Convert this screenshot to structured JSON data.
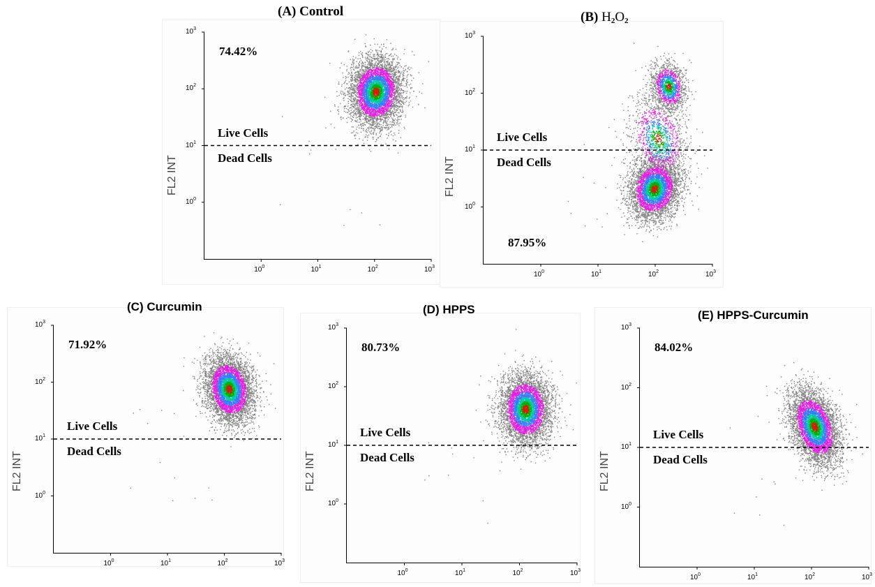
{
  "figure": {
    "panels": [
      {
        "id": "A",
        "title_prefix": "(A)",
        "title_text": "Control",
        "title_font": "serif",
        "y_label": "FL2 INT",
        "percent": "74.42%",
        "percent_pos": "top",
        "live_label": "Live Cells",
        "dead_label": "Dead Cells"
      },
      {
        "id": "B",
        "title_prefix": "(B)",
        "title_text": "H",
        "title_sub1": "2",
        "title_mid": "O",
        "title_sub2": "2",
        "title_font": "serif",
        "y_label": "FL2 INT",
        "percent": "87.95%",
        "percent_pos": "bottom",
        "live_label": "Live Cells",
        "dead_label": "Dead Cells"
      },
      {
        "id": "C",
        "title_prefix": "(C)",
        "title_text": "Curcumin",
        "title_font": "sans",
        "y_label": "FL2 INT",
        "percent": "71.92%",
        "percent_pos": "top",
        "live_label": "Live Cells",
        "dead_label": "Dead Cells"
      },
      {
        "id": "D",
        "title_prefix": "(D)",
        "title_text": "HPPS",
        "title_font": "sans",
        "y_label": "FL2 INT",
        "percent": "80.73%",
        "percent_pos": "top",
        "live_label": "Live Cells",
        "dead_label": "Dead Cells"
      },
      {
        "id": "E",
        "title_prefix": "(E)",
        "title_text": "HPPS-Curcumin",
        "title_font": "sans",
        "y_label": "FL2 INT",
        "percent": "84.02%",
        "percent_pos": "top",
        "live_label": "Live Cells",
        "dead_label": "Dead Cells"
      }
    ],
    "tick_base": "10",
    "y_tick_exponents": [
      "3",
      "2",
      "1",
      "0"
    ],
    "x_tick_exponents": [
      "0",
      "1",
      "2",
      "3"
    ]
  },
  "chart_data": [
    {
      "type": "scatter",
      "panel": "A",
      "title": "(A) Control",
      "ylabel": "FL2 INT",
      "xlabel": "",
      "xscale": "log",
      "yscale": "log",
      "xlim": [
        0.1,
        1000
      ],
      "ylim": [
        0.1,
        1000
      ],
      "gate_y": 10,
      "gate_labels": [
        "Live Cells",
        "Dead Cells"
      ],
      "annotation": "74.42%",
      "clusters": [
        {
          "center_x": 110,
          "center_y": 80,
          "description": "main population above gate"
        }
      ],
      "density_colors": [
        "#808080",
        "#e020e0",
        "#3a7bff",
        "#00c8a0",
        "#00b000",
        "#d02000"
      ]
    },
    {
      "type": "scatter",
      "panel": "B",
      "title": "(B) H2O2",
      "ylabel": "FL2 INT",
      "xlabel": "",
      "xscale": "log",
      "yscale": "log",
      "xlim": [
        0.1,
        1000
      ],
      "ylim": [
        0.1,
        1000
      ],
      "gate_y": 10,
      "gate_labels": [
        "Live Cells",
        "Dead Cells"
      ],
      "annotation": "87.95%",
      "clusters": [
        {
          "center_x": 95,
          "center_y": 2,
          "description": "main population below gate"
        },
        {
          "center_x": 180,
          "center_y": 150,
          "description": "secondary population above gate"
        }
      ],
      "density_colors": [
        "#808080",
        "#e020e0",
        "#3a7bff",
        "#00c8a0",
        "#00b000",
        "#d02000"
      ]
    },
    {
      "type": "scatter",
      "panel": "C",
      "title": "(C) Curcumin",
      "ylabel": "FL2 INT",
      "xlabel": "",
      "xscale": "log",
      "yscale": "log",
      "xlim": [
        0.1,
        1000
      ],
      "ylim": [
        0.1,
        1000
      ],
      "gate_y": 10,
      "gate_labels": [
        "Live Cells",
        "Dead Cells"
      ],
      "annotation": "71.92%",
      "clusters": [
        {
          "center_x": 110,
          "center_y": 70,
          "description": "main population above gate"
        }
      ],
      "density_colors": [
        "#808080",
        "#e020e0",
        "#3a7bff",
        "#00c8a0",
        "#00b000",
        "#d02000"
      ]
    },
    {
      "type": "scatter",
      "panel": "D",
      "title": "(D) HPPS",
      "ylabel": "FL2 INT",
      "xlabel": "",
      "xscale": "log",
      "yscale": "log",
      "xlim": [
        0.1,
        1000
      ],
      "ylim": [
        0.1,
        1000
      ],
      "gate_y": 10,
      "gate_labels": [
        "Live Cells",
        "Dead Cells"
      ],
      "annotation": "80.73%",
      "clusters": [
        {
          "center_x": 120,
          "center_y": 35,
          "description": "main population above gate"
        }
      ],
      "density_colors": [
        "#808080",
        "#e020e0",
        "#3a7bff",
        "#00c8a0",
        "#00b000",
        "#d02000"
      ]
    },
    {
      "type": "scatter",
      "panel": "E",
      "title": "(E) HPPS-Curcumin",
      "ylabel": "FL2 INT",
      "xlabel": "",
      "xscale": "log",
      "yscale": "log",
      "xlim": [
        0.1,
        1000
      ],
      "ylim": [
        0.1,
        1000
      ],
      "gate_y": 10,
      "gate_labels": [
        "Live Cells",
        "Dead Cells"
      ],
      "annotation": "84.02%",
      "clusters": [
        {
          "center_x": 95,
          "center_y": 18,
          "description": "main population just above gate"
        }
      ],
      "density_colors": [
        "#808080",
        "#e020e0",
        "#3a7bff",
        "#00c8a0",
        "#00b000",
        "#d02000"
      ]
    }
  ]
}
